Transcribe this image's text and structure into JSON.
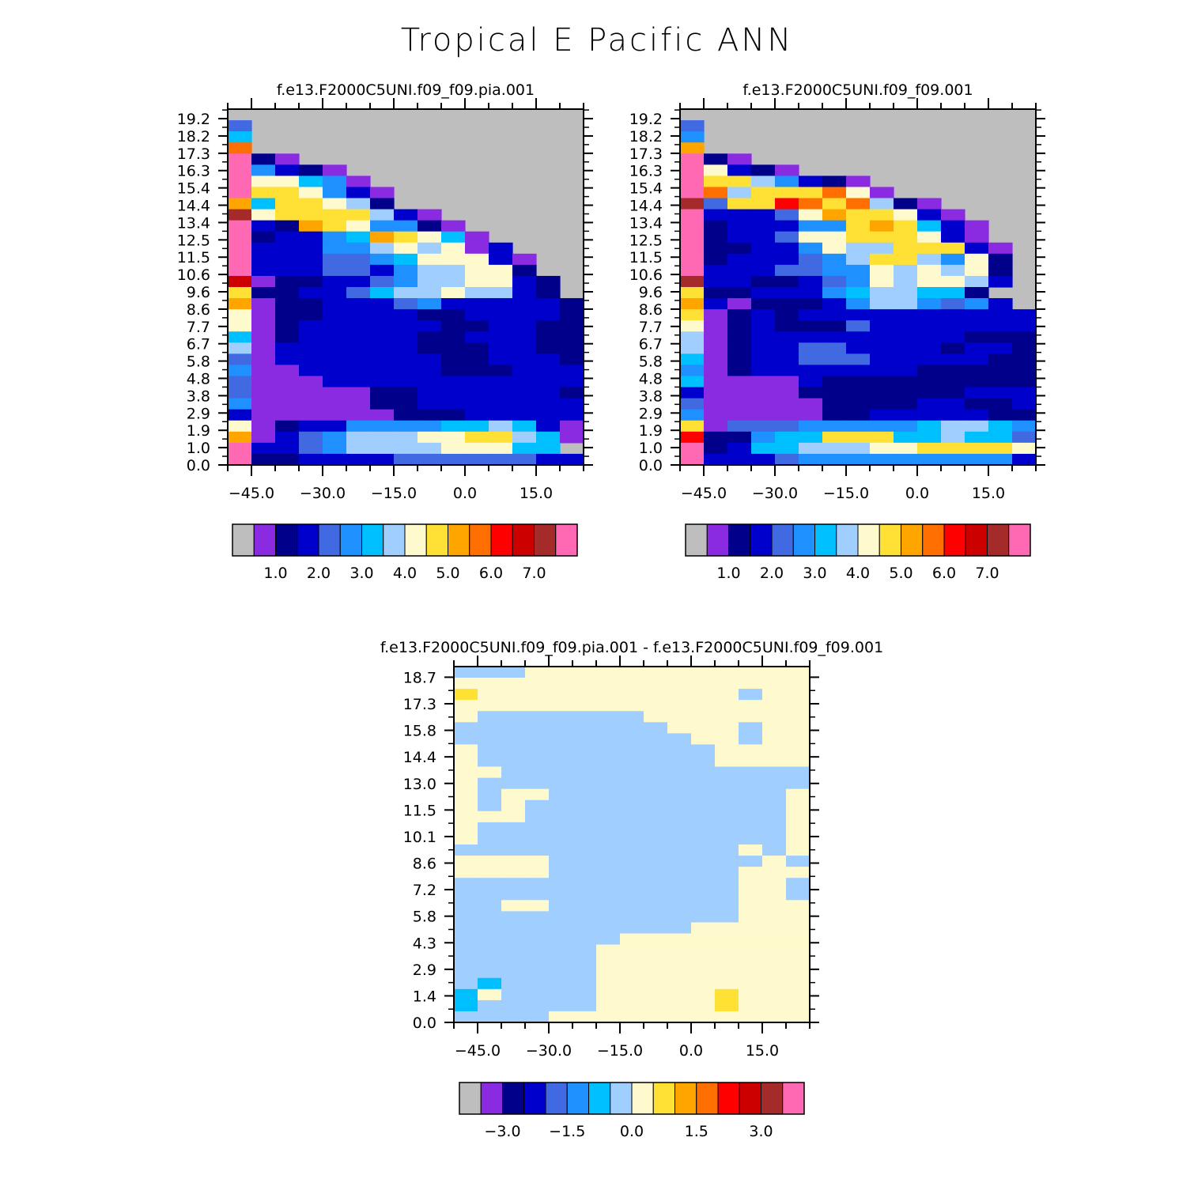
{
  "title": "Tropical E Pacific ANN",
  "colors": {
    "palette": [
      "#bebebe",
      "#8a2be2",
      "#00008b",
      "#0000cd",
      "#4169e1",
      "#1e90ff",
      "#00bfff",
      "#a0cfff",
      "#fffacd",
      "#ffe135",
      "#ffa500",
      "#ff6e00",
      "#ff0000",
      "#cd0000",
      "#a52a2a",
      "#ff69b4"
    ],
    "missing": "#bebebe"
  },
  "chart_data": [
    {
      "type": "heatmap",
      "title": "f.e13.F2000C5UNI.f09_f09.pia.001",
      "x_ticks": [
        "-45.0",
        "-30.0",
        "-15.0",
        "0.0",
        "15.0"
      ],
      "y_ticks": [
        "0.0",
        "1.0",
        "1.9",
        "2.9",
        "3.8",
        "4.8",
        "5.8",
        "6.7",
        "7.7",
        "8.6",
        "9.6",
        "10.6",
        "11.5",
        "12.5",
        "13.4",
        "14.4",
        "15.4",
        "16.3",
        "17.3",
        "18.2",
        "19.2"
      ],
      "colorbar_labels": [
        "1.0",
        "2.0",
        "3.0",
        "4.0",
        "5.0",
        "6.0",
        "7.0"
      ],
      "grid_rows_top_to_bottom": [
        "000000000000000",
        "400000000000000",
        "600000000000000",
        "B00000000000000",
        "F21000000000000",
        "F53210000000000",
        "F88651000000000",
        "F99853100000000",
        "A69987200000000",
        "E89999731000000",
        "F32A985521000000",
        "F23356A9861000",
        "F33355787813000",
        "F33344568883100",
        "F33344357788200",
        "D12233457788320",
        "9223346778773200",
        "A1223334533333210",
        "81223333223333210",
        "81233333322332210",
        "6123333322333221",
        "7133333322233221",
        "41333333322333221",
        "51133333322233331",
        "411133333333333200",
        "411111223333332100",
        "5111112233333331000",
        "3111111222333331000",
        "81233555566763100",
        "A1345777889976110",
        "F33457777888660000",
        "F22333344444433000"
      ]
    },
    {
      "type": "heatmap",
      "title": "f.e13.F2000C5UNI.f09_f09.001",
      "x_ticks": [
        "-45.0",
        "-30.0",
        "-15.0",
        "0.0",
        "15.0"
      ],
      "y_ticks": [
        "0.0",
        "1.0",
        "1.9",
        "2.9",
        "3.8",
        "4.8",
        "5.8",
        "6.7",
        "7.7",
        "8.6",
        "9.6",
        "10.6",
        "11.5",
        "12.5",
        "13.4",
        "14.4",
        "15.4",
        "16.3",
        "17.3",
        "18.2",
        "19.2"
      ],
      "colorbar_labels": [
        "1.0",
        "2.0",
        "3.0",
        "4.0",
        "5.0",
        "6.0",
        "7.0"
      ],
      "grid_rows_top_to_bottom": [
        "000000000000000",
        "400000000000000",
        "500000000000000",
        "A00000000000000",
        "F21000000000000",
        "F83210000000000",
        "F9975321000000",
        "FB7999B81000000",
        "E499CB9B721000",
        "F33348A99831000",
        "F2333559A9631000",
        "F23348899983100",
        "F22335877999310",
        "F233345799758200",
        "F33344558787820",
        "E3322345878873",
        "9223335677662",
        "A3122235775453",
        "91232333333333310",
        "8123222433333332",
        "7123333333332221",
        "71233443333233221",
        "6123344433333223",
        "51233333332222233",
        "611113222222222221",
        "311112222222333331",
        "411111222233223331",
        "51111122333332210",
        "91444555556776543",
        "C2256699966766430",
        "F23667778899998300",
        "F33345555555553000"
      ]
    },
    {
      "type": "heatmap",
      "title": "f.e13.F2000C5UNI.f09_f09.pia.001 - f.e13.F2000C5UNI.f09_f09.001",
      "x_ticks": [
        "-45.0",
        "-30.0",
        "-15.0",
        "0.0",
        "15.0"
      ],
      "y_ticks": [
        "0.0",
        "1.4",
        "2.9",
        "4.3",
        "5.8",
        "7.2",
        "8.6",
        "10.1",
        "11.5",
        "13.0",
        "14.4",
        "15.8",
        "17.3",
        "18.7"
      ],
      "colorbar_labels": [
        "-3.0",
        "-1.5",
        "0.0",
        "1.5",
        "3.0"
      ],
      "grid_rows_top_to_bottom": [
        "777888888888888",
        "888888888888888",
        "988888888888788",
        "888888888888888",
        "877777778888888",
        "777777777888788",
        "777777777788788",
        "877777777778888",
        "877777777778888",
        "887777777777777",
        "877777777777777",
        "878877777777778",
        "878777777777778",
        "888777777777778",
        "877777777777778",
        "877777777777778",
        "777777777777878",
        "888877777777787",
        "888877777777888",
        "777777777777887",
        "777777777777887",
        "778877777777888",
        "777777777777888",
        "777777777788888",
        "777777788888888",
        "777777888888888",
        "777777888888888",
        "777777888888888",
        "767777888888888",
        "687777888889888",
        "677777888889888",
        "777788888888888"
      ]
    }
  ]
}
